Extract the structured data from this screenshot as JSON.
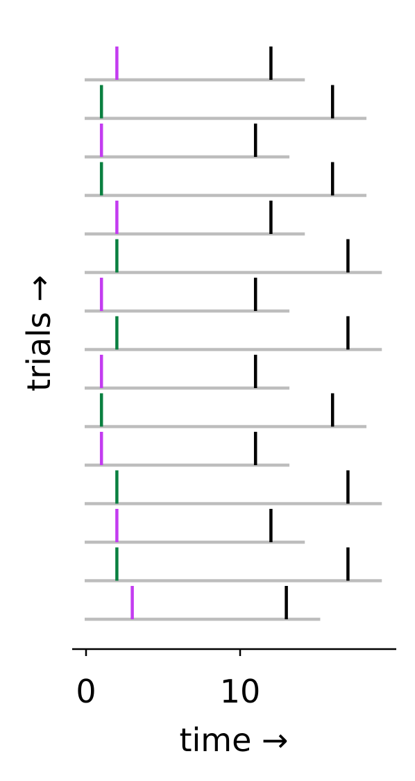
{
  "chart_data": {
    "type": "scatter",
    "xlabel": "time →",
    "ylabel": "trials →",
    "xlim": [
      -1,
      20
    ],
    "xticks": [
      0,
      10
    ],
    "xtick_labels": [
      "0",
      "10"
    ],
    "grid": false,
    "colors": {
      "baseline": "#bdbdbd",
      "event_purple": "#c33cf0",
      "event_green": "#0a8040",
      "event_end": "#000000",
      "axis": "#000000"
    },
    "trials": [
      {
        "end": 14.2,
        "first": 2,
        "first_type": "purple",
        "second": 12
      },
      {
        "end": 18.2,
        "first": 1,
        "first_type": "green",
        "second": 16
      },
      {
        "end": 13.2,
        "first": 1,
        "first_type": "purple",
        "second": 11
      },
      {
        "end": 18.2,
        "first": 1,
        "first_type": "green",
        "second": 16
      },
      {
        "end": 14.2,
        "first": 2,
        "first_type": "purple",
        "second": 12
      },
      {
        "end": 19.2,
        "first": 2,
        "first_type": "green",
        "second": 17
      },
      {
        "end": 13.2,
        "first": 1,
        "first_type": "purple",
        "second": 11
      },
      {
        "end": 19.2,
        "first": 2,
        "first_type": "green",
        "second": 17
      },
      {
        "end": 13.2,
        "first": 1,
        "first_type": "purple",
        "second": 11
      },
      {
        "end": 18.2,
        "first": 1,
        "first_type": "green",
        "second": 16
      },
      {
        "end": 13.2,
        "first": 1,
        "first_type": "purple",
        "second": 11
      },
      {
        "end": 19.2,
        "first": 2,
        "first_type": "green",
        "second": 17
      },
      {
        "end": 14.2,
        "first": 2,
        "first_type": "purple",
        "second": 12
      },
      {
        "end": 19.2,
        "first": 2,
        "first_type": "green",
        "second": 17
      },
      {
        "end": 15.2,
        "first": 3,
        "first_type": "purple",
        "second": 13
      }
    ]
  }
}
